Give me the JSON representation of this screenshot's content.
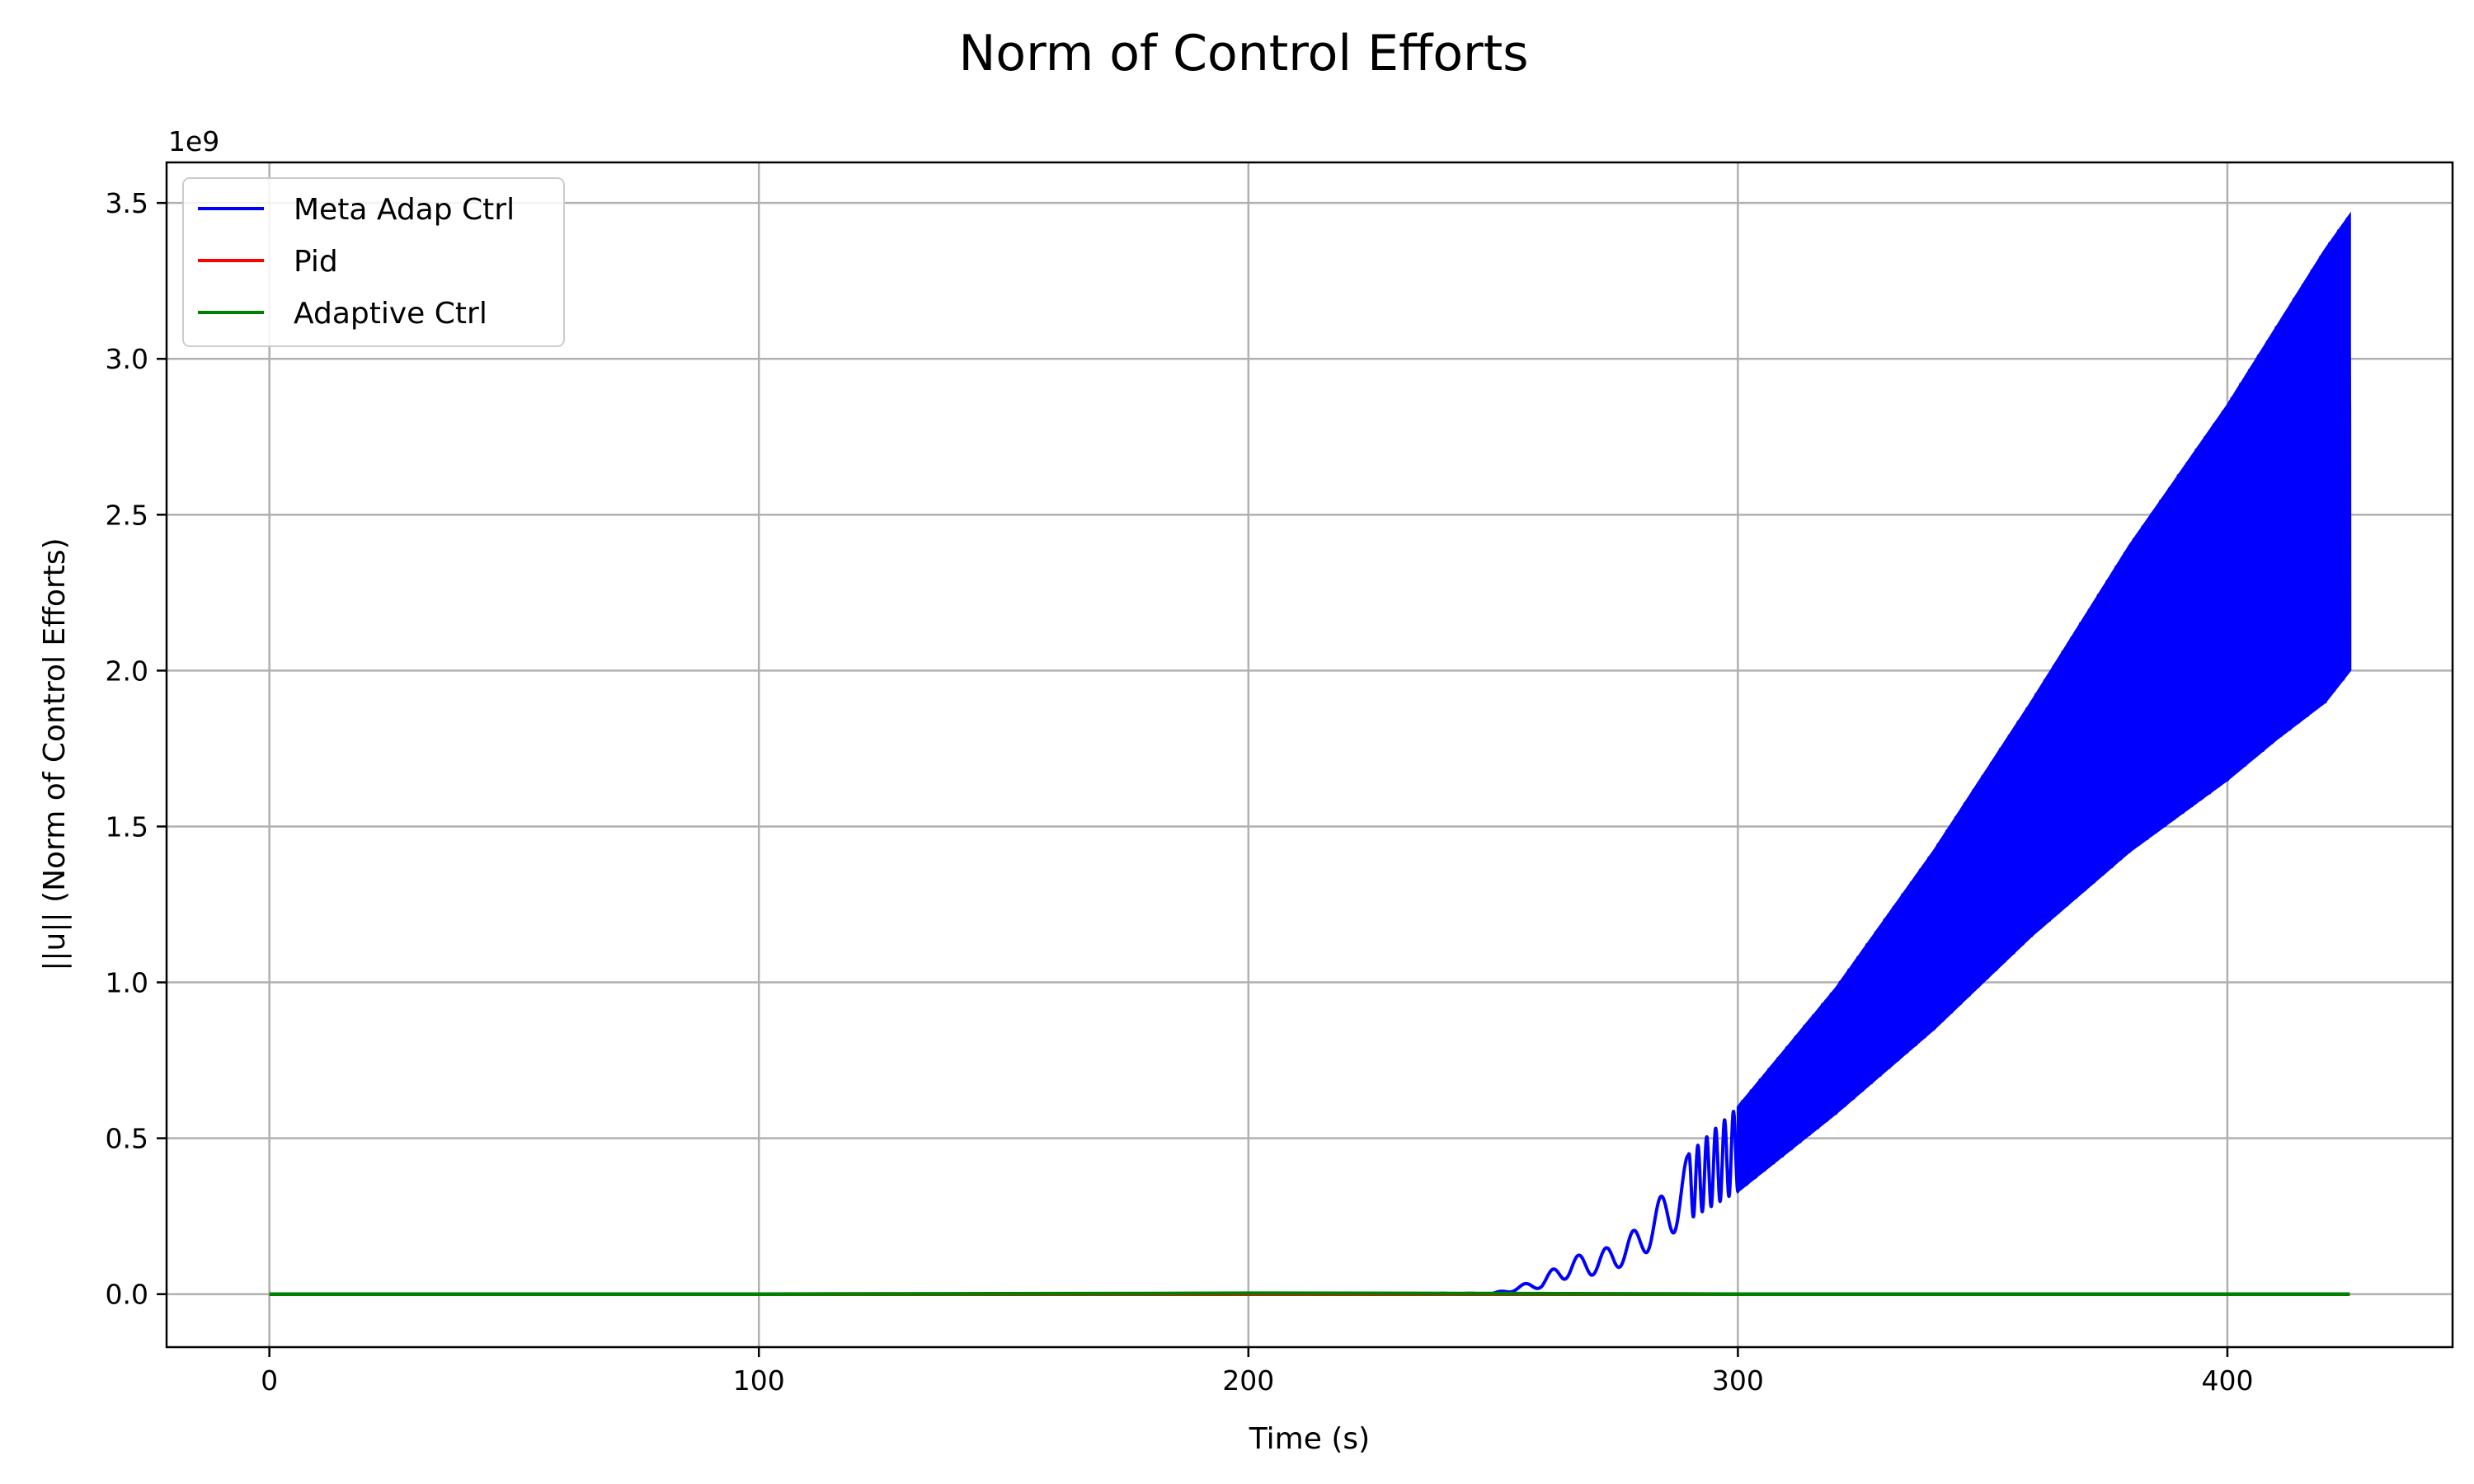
{
  "chart_data": {
    "type": "line",
    "title": "Norm of Control Efforts",
    "xlabel": "Time (s)",
    "ylabel": "||u|| (Norm of Control Efforts)",
    "y_scale_label": "1e9",
    "xlim": [
      -21,
      446
    ],
    "ylim": [
      -0.17,
      3.63
    ],
    "xticks": [
      0,
      100,
      200,
      300,
      400
    ],
    "yticks": [
      0.0,
      0.5,
      1.0,
      1.5,
      2.0,
      2.5,
      3.0,
      3.5
    ],
    "xtick_labels": [
      "0",
      "100",
      "200",
      "300",
      "400"
    ],
    "ytick_labels": [
      "0.0",
      "0.5",
      "1.0",
      "1.5",
      "2.0",
      "2.5",
      "3.0",
      "3.5"
    ],
    "grid": true,
    "legend_position": "top-left",
    "series": [
      {
        "name": "Meta Adap Ctrl",
        "color": "#0000ff",
        "x": [
          0,
          100,
          200,
          250,
          260,
          265,
          270,
          275,
          280,
          285,
          290,
          300,
          320,
          340,
          360,
          380,
          400,
          410,
          420,
          425
        ],
        "envelope_upper": [
          0.0,
          0.0,
          0.0,
          0.003,
          0.05,
          0.12,
          0.13,
          0.16,
          0.22,
          0.33,
          0.45,
          0.6,
          0.98,
          1.42,
          1.9,
          2.4,
          2.85,
          3.1,
          3.35,
          3.46
        ],
        "envelope_lower": [
          0.0,
          0.0,
          0.0,
          0.0,
          0.02,
          0.05,
          0.06,
          0.08,
          0.12,
          0.17,
          0.24,
          0.33,
          0.58,
          0.85,
          1.15,
          1.42,
          1.65,
          1.78,
          1.9,
          2.0
        ]
      },
      {
        "name": "Pid",
        "color": "#ff0000",
        "x": [
          0,
          100,
          200,
          300,
          400,
          425
        ],
        "values": [
          0.0,
          0.0,
          0.0,
          0.0,
          0.0,
          0.0
        ]
      },
      {
        "name": "Adaptive Ctrl",
        "color": "#008000",
        "x": [
          0,
          100,
          180,
          200,
          250,
          300,
          400,
          425
        ],
        "values": [
          0.0,
          0.0,
          0.002,
          0.003,
          0.002,
          0.0,
          0.0,
          0.0
        ]
      }
    ]
  }
}
